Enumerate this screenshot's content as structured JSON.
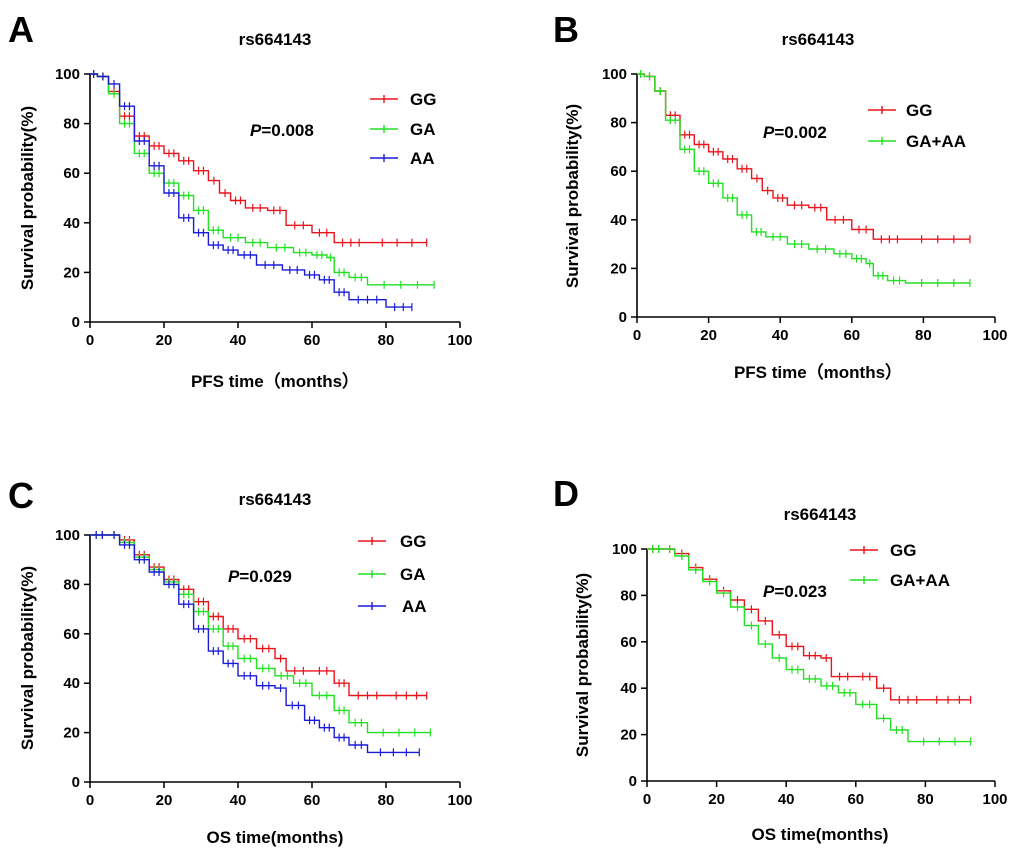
{
  "colors": {
    "GG": "#e8141c",
    "GA": "#22e022",
    "AA": "#1c1cd8",
    "GA+AA": "#22e022"
  },
  "chart_data": [
    {
      "type": "line",
      "panel": "A",
      "title": "rs664143",
      "xlabel": "PFS time（months）",
      "ylabel": "Survival probability(%)",
      "xlim": [
        0,
        100
      ],
      "ylim": [
        0,
        100
      ],
      "xticks": [
        "0",
        "20",
        "40",
        "60",
        "80",
        "100"
      ],
      "yticks": [
        "0",
        "20",
        "40",
        "60",
        "80",
        "100"
      ],
      "p_label": "P",
      "p_value": "=0.008",
      "series": [
        {
          "name": "GG",
          "color_key": "GG",
          "x": [
            0,
            2,
            5,
            8,
            12,
            16,
            20,
            24,
            28,
            32,
            35,
            38,
            42,
            48,
            53,
            60,
            66,
            75,
            91
          ],
          "y": [
            100,
            99,
            93,
            83,
            75,
            71,
            68,
            65,
            61,
            57,
            52,
            49,
            46,
            45,
            39,
            36,
            32,
            32,
            32
          ]
        },
        {
          "name": "GA",
          "color_key": "GA",
          "x": [
            0,
            2,
            5,
            8,
            12,
            16,
            20,
            24,
            28,
            32,
            36,
            42,
            48,
            55,
            60,
            64,
            66,
            70,
            75,
            93
          ],
          "y": [
            100,
            99,
            92,
            80,
            68,
            60,
            56,
            51,
            45,
            37,
            34,
            32,
            30,
            28,
            27,
            26,
            20,
            18,
            15,
            15
          ]
        },
        {
          "name": "AA",
          "color_key": "AA",
          "x": [
            0,
            2,
            5,
            8,
            12,
            16,
            20,
            24,
            28,
            32,
            36,
            40,
            45,
            52,
            58,
            62,
            66,
            70,
            80,
            87
          ],
          "y": [
            100,
            99,
            96,
            87,
            73,
            63,
            52,
            42,
            36,
            31,
            29,
            27,
            23,
            21,
            19,
            17,
            12,
            9,
            6,
            6
          ]
        }
      ]
    },
    {
      "type": "line",
      "panel": "B",
      "title": "rs664143",
      "xlabel": "PFS time（months）",
      "ylabel": "Survival probability(%)",
      "xlim": [
        0,
        100
      ],
      "ylim": [
        0,
        100
      ],
      "xticks": [
        "0",
        "20",
        "40",
        "60",
        "80",
        "100"
      ],
      "yticks": [
        "0",
        "20",
        "40",
        "60",
        "80",
        "100"
      ],
      "p_label": "P",
      "p_value": "=0.002",
      "series": [
        {
          "name": "GG",
          "color_key": "GG",
          "x": [
            0,
            2,
            5,
            8,
            12,
            16,
            20,
            24,
            28,
            32,
            35,
            38,
            42,
            48,
            53,
            60,
            66,
            75,
            93
          ],
          "y": [
            100,
            99,
            93,
            83,
            75,
            71,
            68,
            65,
            61,
            57,
            52,
            49,
            46,
            45,
            40,
            36,
            32,
            32,
            32
          ]
        },
        {
          "name": "GA+AA",
          "color_key": "GA+AA",
          "x": [
            0,
            2,
            5,
            8,
            12,
            16,
            20,
            24,
            28,
            32,
            36,
            42,
            48,
            55,
            60,
            64,
            66,
            70,
            75,
            93
          ],
          "y": [
            100,
            99,
            93,
            81,
            69,
            60,
            55,
            49,
            42,
            35,
            33,
            30,
            28,
            26,
            24,
            22,
            17,
            15,
            14,
            14
          ]
        }
      ]
    },
    {
      "type": "line",
      "panel": "C",
      "title": "rs664143",
      "xlabel": "OS time(months)",
      "ylabel": "Survival probability(%)",
      "xlim": [
        0,
        100
      ],
      "ylim": [
        0,
        100
      ],
      "xticks": [
        "0",
        "20",
        "40",
        "60",
        "80",
        "100"
      ],
      "yticks": [
        "0",
        "20",
        "40",
        "60",
        "80",
        "100"
      ],
      "p_label": "P",
      "p_value": "=0.029",
      "series": [
        {
          "name": "GG",
          "color_key": "GG",
          "x": [
            0,
            5,
            8,
            12,
            16,
            20,
            24,
            28,
            32,
            36,
            40,
            45,
            50,
            53,
            60,
            66,
            70,
            80,
            91
          ],
          "y": [
            100,
            100,
            98,
            92,
            87,
            82,
            78,
            73,
            67,
            62,
            58,
            54,
            50,
            45,
            45,
            40,
            35,
            35,
            35
          ]
        },
        {
          "name": "GA",
          "color_key": "GA",
          "x": [
            0,
            5,
            8,
            12,
            16,
            20,
            24,
            28,
            32,
            36,
            40,
            45,
            50,
            55,
            60,
            66,
            70,
            75,
            92
          ],
          "y": [
            100,
            100,
            97,
            91,
            86,
            81,
            76,
            69,
            62,
            55,
            50,
            46,
            43,
            40,
            35,
            29,
            24,
            20,
            20
          ]
        },
        {
          "name": "AA",
          "color_key": "AA",
          "x": [
            0,
            5,
            8,
            12,
            16,
            20,
            24,
            28,
            32,
            36,
            40,
            45,
            50,
            53,
            58,
            62,
            66,
            70,
            75,
            89
          ],
          "y": [
            100,
            100,
            96,
            90,
            85,
            80,
            72,
            62,
            53,
            48,
            43,
            39,
            38,
            31,
            25,
            22,
            18,
            15,
            12,
            12
          ]
        }
      ]
    },
    {
      "type": "line",
      "panel": "D",
      "title": "rs664143",
      "xlabel": "OS time(months)",
      "ylabel": "Survival probability(%)",
      "xlim": [
        0,
        100
      ],
      "ylim": [
        0,
        100
      ],
      "xticks": [
        "0",
        "20",
        "40",
        "60",
        "80",
        "100"
      ],
      "yticks": [
        "0",
        "20",
        "40",
        "60",
        "80",
        "100"
      ],
      "p_label": "P",
      "p_value": "=0.023",
      "series": [
        {
          "name": "GG",
          "color_key": "GG",
          "x": [
            0,
            5,
            8,
            12,
            16,
            20,
            24,
            28,
            32,
            36,
            40,
            45,
            50,
            53,
            60,
            66,
            70,
            80,
            93
          ],
          "y": [
            100,
            100,
            98,
            92,
            87,
            82,
            78,
            74,
            69,
            63,
            58,
            54,
            53,
            45,
            45,
            40,
            35,
            35,
            35
          ]
        },
        {
          "name": "GA+AA",
          "color_key": "GA+AA",
          "x": [
            0,
            5,
            8,
            12,
            16,
            20,
            24,
            28,
            32,
            36,
            40,
            45,
            50,
            55,
            60,
            66,
            70,
            75,
            93
          ],
          "y": [
            100,
            100,
            97,
            91,
            86,
            81,
            75,
            67,
            59,
            53,
            48,
            44,
            41,
            38,
            33,
            27,
            22,
            17,
            17
          ]
        }
      ]
    }
  ]
}
